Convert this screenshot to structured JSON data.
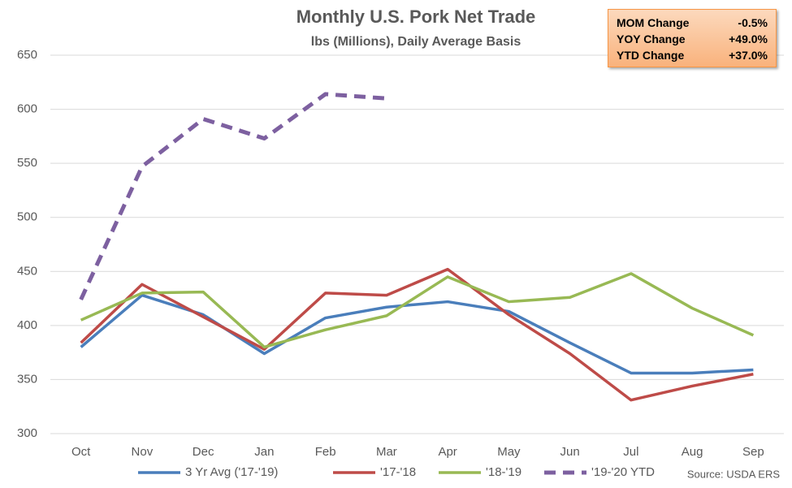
{
  "chart_data": {
    "type": "line",
    "title": "Monthly U.S. Pork Net Trade",
    "subtitle": "lbs (Millions), Daily Average Basis",
    "categories": [
      "Oct",
      "Nov",
      "Dec",
      "Jan",
      "Feb",
      "Mar",
      "Apr",
      "May",
      "Jun",
      "Jul",
      "Aug",
      "Sep"
    ],
    "series": [
      {
        "name": "3 Yr Avg ('17-'19)",
        "color": "#4a7ebb",
        "style": "solid",
        "values": [
          380,
          428,
          410,
          374,
          407,
          417,
          422,
          413,
          384,
          356,
          356,
          359
        ]
      },
      {
        "name": "'17-'18",
        "color": "#be4b48",
        "style": "solid",
        "values": [
          384,
          438,
          408,
          378,
          430,
          428,
          452,
          410,
          374,
          331,
          344,
          355
        ]
      },
      {
        "name": "'18-'19",
        "color": "#98b954",
        "style": "solid",
        "values": [
          405,
          430,
          431,
          380,
          396,
          409,
          445,
          422,
          426,
          448,
          416,
          391
        ]
      },
      {
        "name": "'19-'20 YTD",
        "color": "#7d60a0",
        "style": "dashed",
        "values": [
          424,
          547,
          591,
          573,
          614,
          610,
          null,
          null,
          null,
          null,
          null,
          null
        ]
      }
    ],
    "ylim": [
      300,
      650
    ],
    "yticks": [
      300,
      350,
      400,
      450,
      500,
      550,
      600,
      650
    ],
    "grid": true,
    "legend": "bottom",
    "source": "Source: USDA ERS",
    "info_box": {
      "rows": [
        [
          "MOM Change",
          "-0.5%"
        ],
        [
          "YOY Change",
          "+49.0%"
        ],
        [
          "YTD Change",
          "+37.0%"
        ]
      ]
    }
  }
}
